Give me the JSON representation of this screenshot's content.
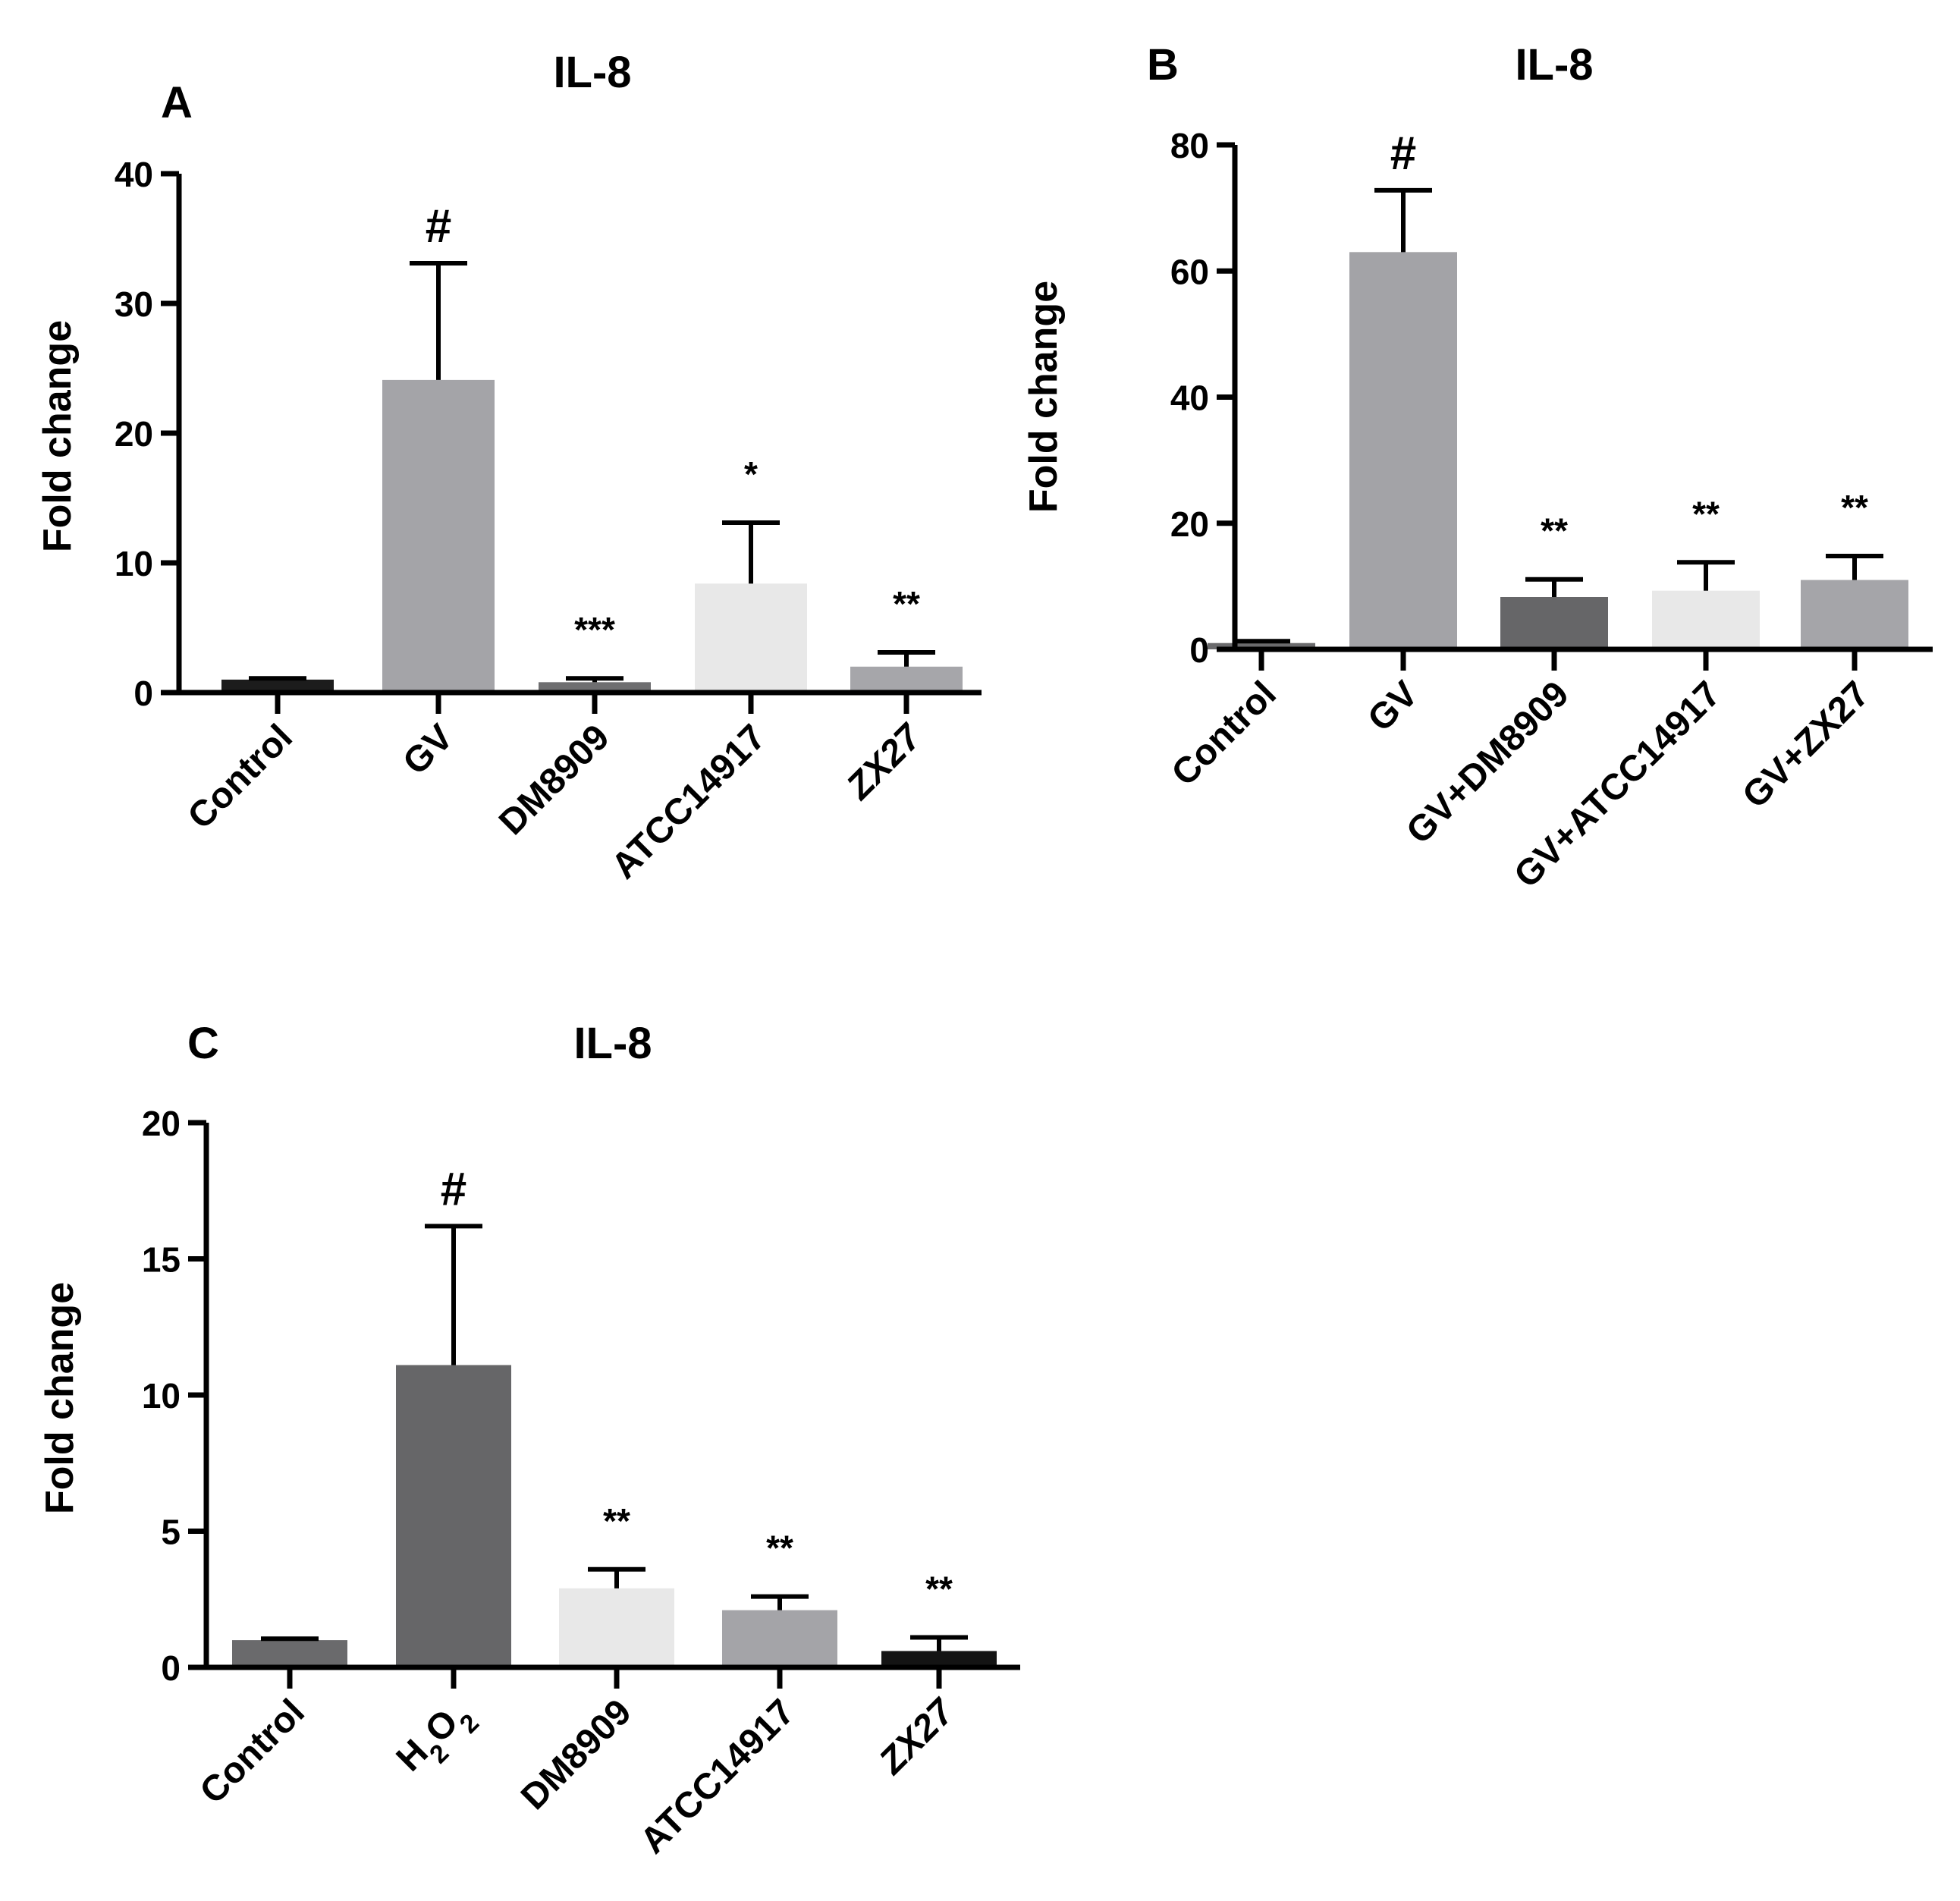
{
  "chart_data": [
    {
      "panel_letter": "A",
      "type": "bar",
      "title": "IL-8",
      "xlabel": "",
      "ylabel": "Fold change",
      "ylim": [
        0,
        40
      ],
      "yticks": [
        "0",
        "10",
        "20",
        "30",
        "40"
      ],
      "grid": false,
      "categories": [
        "Control",
        "GV",
        "DM8909",
        "ATCC14917",
        "ZX27"
      ],
      "category_style": [
        "normal",
        "normal",
        "normal",
        "normal",
        "italic"
      ],
      "values": [
        1.0,
        24.1,
        0.8,
        8.4,
        2.0
      ],
      "errors": [
        0.1,
        9.0,
        0.3,
        4.7,
        1.1
      ],
      "annotations": [
        "",
        "#",
        "***",
        "*",
        "**"
      ],
      "bar_colors": [
        "#1c1c1c",
        "#a4a4a8",
        "#6e6e70",
        "#e8e8e8",
        "#a6a6aa"
      ]
    },
    {
      "panel_letter": "B",
      "type": "bar",
      "title": "IL-8",
      "xlabel": "",
      "ylabel": "Fold change",
      "ylim": [
        0,
        80
      ],
      "yticks": [
        "0",
        "20",
        "40",
        "60",
        "80"
      ],
      "grid": false,
      "categories": [
        "Control",
        "GV",
        "GV+DM8909",
        "GV+ATCC14917",
        "GV+ZX27"
      ],
      "category_style": [
        "normal",
        "normal",
        "normal",
        "normal",
        "italic-suffix"
      ],
      "values": [
        1.0,
        63.0,
        8.3,
        9.3,
        11.0
      ],
      "errors": [
        0.3,
        9.8,
        2.8,
        4.5,
        3.8
      ],
      "annotations": [
        "",
        "#",
        "**",
        "**",
        "**"
      ],
      "bar_colors": [
        "#6a6a6c",
        "#a3a3a7",
        "#666668",
        "#e8e8e8",
        "#a5a5a9"
      ]
    },
    {
      "panel_letter": "C",
      "type": "bar",
      "title": "IL-8",
      "xlabel": "",
      "ylabel": "Fold change",
      "ylim": [
        0,
        20
      ],
      "yticks": [
        "0",
        "5",
        "10",
        "15",
        "20"
      ],
      "grid": false,
      "categories": [
        "Control",
        "H2O2",
        "DM8909",
        "ATCC14917",
        "ZX27"
      ],
      "category_style": [
        "normal",
        "subscript",
        "normal",
        "normal",
        "italic"
      ],
      "values": [
        1.0,
        11.1,
        2.9,
        2.1,
        0.6
      ],
      "errors": [
        0.05,
        5.1,
        0.7,
        0.5,
        0.5
      ],
      "annotations": [
        "",
        "#",
        "**",
        "**",
        "**"
      ],
      "bar_colors": [
        "#6a6a6c",
        "#666668",
        "#e8e8e8",
        "#a4a4a8",
        "#141414"
      ]
    }
  ]
}
